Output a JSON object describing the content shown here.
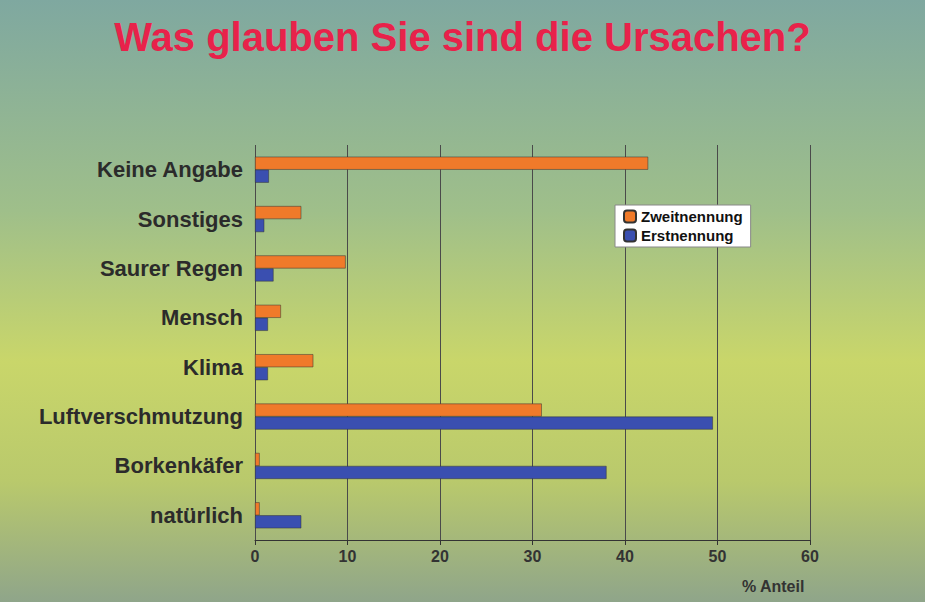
{
  "chart_data": {
    "type": "bar",
    "orientation": "horizontal",
    "title": "Was glauben Sie sind die Ursachen?",
    "x_label": "% Anteil",
    "categories": [
      "Keine Angabe",
      "Sonstiges",
      "Saurer Regen",
      "Mensch",
      "Klima",
      "Luftverschmutzung",
      "Borkenkäfer",
      "natürlich"
    ],
    "series": [
      {
        "name": "Zweitnennung",
        "color": "#f07a2a",
        "values": [
          42.5,
          5,
          9.8,
          2.8,
          6.3,
          31,
          0.5,
          0.5
        ]
      },
      {
        "name": "Erstnennung",
        "color": "#3a4fb0",
        "values": [
          1.5,
          1,
          2,
          1.4,
          1.4,
          49.5,
          38,
          5
        ]
      }
    ],
    "xlim": [
      0,
      60
    ],
    "xticks": [
      0,
      10,
      20,
      30,
      40,
      50,
      60
    ],
    "grid": true,
    "legend": "right"
  }
}
